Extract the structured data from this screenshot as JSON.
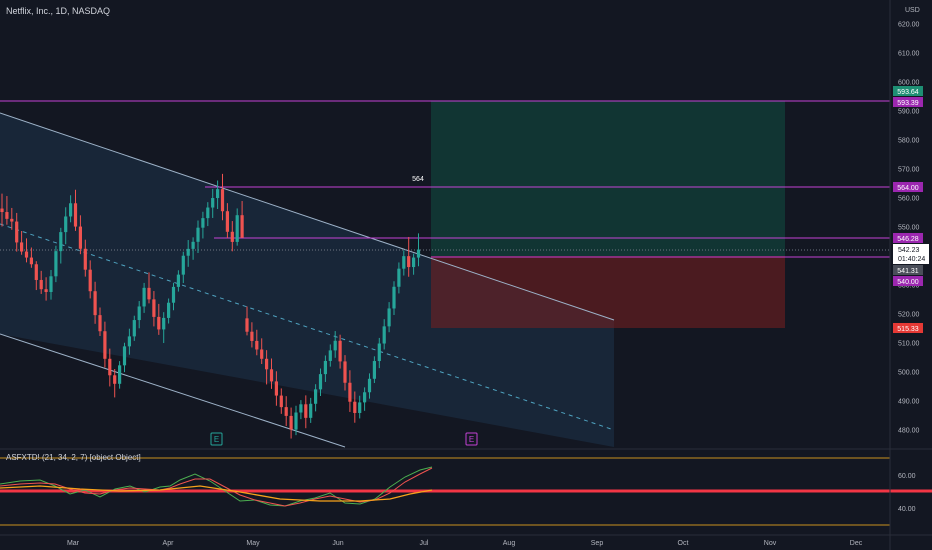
{
  "header": {
    "symbol_title": "Netflix, Inc., 1D, NASDAQ",
    "currency": "USD"
  },
  "indicator": {
    "title": "ASFXTD! (21, 34, 2, 7) [object Object]"
  },
  "colors": {
    "background": "#131722",
    "up": "#26a69a",
    "down": "#ef5350",
    "channel": "#9db2c8",
    "level_line": "#c342d4",
    "target_zone": "#0f5a4a",
    "stop_zone": "#7a1f1f",
    "indicator_red_line": "#f23645"
  },
  "price_axis": {
    "ticks": [
      "620.00",
      "610.00",
      "600.00",
      "590.00",
      "580.00",
      "570.00",
      "560.00",
      "550.00",
      "530.00",
      "520.00",
      "510.00",
      "500.00",
      "490.00",
      "480.00"
    ]
  },
  "time_axis": {
    "labels": [
      "Mar",
      "Apr",
      "May",
      "Jun",
      "Jul",
      "Aug",
      "Sep",
      "Oct",
      "Nov",
      "Dec"
    ]
  },
  "indicator_axis": {
    "ticks": [
      "60.00",
      "40.00"
    ]
  },
  "level_labels": {
    "target": "593.64",
    "upper": "593.39",
    "l564": "564.00",
    "l546": "546.28",
    "last_price": "542.23",
    "countdown": "01:40:24",
    "l541": "541.31",
    "l540": "540.00",
    "stop": "515.33"
  },
  "annotations": {
    "level_564": "564",
    "earnings_1": "E",
    "earnings_2": "E"
  },
  "chart_data": {
    "type": "candlestick",
    "title": "Netflix, Inc., 1D, NASDAQ",
    "ylim": [
      475,
      626
    ],
    "levels": [
      593.39,
      564.0,
      546.28,
      540.0
    ],
    "position": {
      "entry": 542.23,
      "target": 593.64,
      "stop": 515.33
    },
    "channel": {
      "upper": [
        [
          0,
          589
        ],
        [
          88,
          518
        ]
      ],
      "lower": [
        [
          0,
          531
        ],
        [
          88,
          471
        ]
      ]
    },
    "series": [
      {
        "name": "NFLX",
        "x_start": 0,
        "values": [
          [
            556.36,
            561.5,
            550.16,
            555.16
          ],
          [
            555.16,
            560.68,
            550.79,
            552.81
          ],
          [
            552.81,
            556.57,
            549.04,
            551.88
          ],
          [
            551.88,
            554.85,
            541.52,
            544.68
          ],
          [
            544.68,
            548.62,
            540.43,
            541.55
          ],
          [
            541.55,
            546.08,
            537.81,
            539.46
          ],
          [
            539.46,
            542.93,
            535.94,
            537.15
          ],
          [
            537.15,
            538.21,
            528.26,
            531.73
          ],
          [
            531.73,
            534.88,
            526.92,
            528.55
          ],
          [
            528.55,
            532.67,
            524.62,
            527.59
          ],
          [
            527.59,
            535.16,
            524.96,
            533.0
          ],
          [
            533.0,
            543.53,
            530.99,
            541.68
          ],
          [
            541.68,
            549.72,
            537.4,
            548.24
          ],
          [
            548.24,
            556.8,
            544.06,
            553.63
          ],
          [
            553.63,
            560.94,
            551.62,
            558.18
          ],
          [
            558.18,
            562.85,
            548.66,
            550.15
          ],
          [
            550.15,
            554.03,
            540.63,
            542.49
          ],
          [
            542.49,
            545.63,
            532.89,
            535.28
          ],
          [
            535.28,
            538.5,
            525.37,
            527.86
          ],
          [
            527.86,
            531.12,
            516.62,
            519.61
          ],
          [
            519.61,
            522.24,
            512.4,
            514.06
          ],
          [
            514.06,
            517.36,
            501.58,
            504.55
          ],
          [
            504.55,
            508.07,
            495.02,
            498.87
          ],
          [
            498.87,
            501.04,
            491.24,
            495.93
          ],
          [
            495.93,
            503.76,
            494.26,
            502.3
          ],
          [
            502.3,
            510.09,
            499.96,
            508.84
          ],
          [
            508.84,
            514.93,
            505.97,
            512.28
          ],
          [
            512.28,
            519.41,
            510.74,
            517.91
          ],
          [
            517.91,
            524.47,
            515.07,
            522.6
          ],
          [
            522.6,
            530.72,
            520.38,
            529.02
          ],
          [
            529.02,
            534.36,
            523.66,
            525.05
          ],
          [
            525.05,
            527.92,
            515.73,
            519.0
          ],
          [
            519.0,
            523.48,
            512.8,
            514.68
          ],
          [
            514.68,
            520.63,
            509.99,
            518.65
          ],
          [
            518.65,
            525.34,
            516.72,
            523.89
          ],
          [
            523.89,
            530.76,
            521.29,
            529.35
          ],
          [
            529.35,
            535.08,
            527.73,
            533.57
          ],
          [
            533.57,
            541.48,
            530.67,
            540.09
          ],
          [
            540.09,
            545.51,
            536.27,
            542.46
          ],
          [
            542.46,
            546.44,
            538.7,
            544.89
          ],
          [
            544.89,
            552.23,
            541.05,
            549.76
          ],
          [
            549.76,
            555.25,
            546.05,
            553.06
          ],
          [
            553.06,
            558.57,
            550.32,
            556.71
          ],
          [
            556.71,
            563.13,
            553.12,
            559.99
          ],
          [
            559.99,
            566.03,
            556.21,
            563.05
          ],
          [
            563.05,
            568.3,
            552.32,
            555.44
          ],
          [
            555.44,
            558.23,
            546.18,
            548.35
          ],
          [
            548.35,
            552.05,
            541.62,
            544.86
          ],
          [
            544.86,
            556.41,
            543.56,
            554.07
          ],
          [
            554.07,
            558.96,
            546.78,
            546.28
          ],
          [
            518.5,
            522.6,
            512.62,
            513.89
          ],
          [
            513.89,
            517.15,
            508.46,
            510.71
          ],
          [
            510.71,
            514.56,
            505.77,
            507.77
          ],
          [
            507.77,
            511.61,
            502.76,
            504.55
          ],
          [
            504.55,
            507.53,
            495.71,
            500.93
          ],
          [
            500.93,
            504.66,
            494.16,
            496.76
          ],
          [
            496.76,
            500.25,
            488.37,
            491.87
          ],
          [
            491.87,
            494.34,
            485.57,
            487.89
          ],
          [
            487.89,
            491.67,
            481.37,
            484.86
          ],
          [
            484.86,
            487.73,
            477.06,
            480.14
          ],
          [
            480.14,
            488.35,
            478.25,
            486.03
          ],
          [
            486.03,
            490.31,
            483.74,
            488.86
          ],
          [
            488.86,
            491.94,
            480.62,
            484.19
          ],
          [
            484.19,
            491.08,
            482.44,
            489.04
          ],
          [
            489.04,
            495.79,
            486.42,
            494.02
          ],
          [
            494.02,
            501.19,
            491.71,
            499.27
          ],
          [
            499.27,
            505.7,
            496.57,
            503.81
          ],
          [
            503.81,
            509.5,
            501.85,
            507.45
          ],
          [
            507.45,
            514.12,
            504.9,
            510.76
          ],
          [
            510.76,
            512.86,
            501.18,
            503.65
          ],
          [
            503.65,
            505.8,
            493.62,
            496.29
          ],
          [
            496.29,
            500.6,
            486.22,
            489.75
          ],
          [
            489.75,
            493.28,
            482.51,
            485.87
          ],
          [
            485.87,
            491.81,
            483.99,
            489.52
          ],
          [
            489.52,
            494.69,
            486.61,
            493.01
          ],
          [
            493.01,
            499.53,
            490.83,
            497.66
          ],
          [
            497.66,
            505.41,
            496.2,
            503.78
          ],
          [
            503.78,
            511.75,
            501.34,
            509.82
          ],
          [
            509.82,
            518.22,
            507.77,
            515.74
          ],
          [
            515.74,
            524.1,
            513.72,
            521.91
          ],
          [
            521.91,
            531.3,
            519.65,
            529.39
          ],
          [
            529.39,
            537.78,
            527.1,
            535.63
          ],
          [
            535.63,
            541.98,
            533.26,
            539.95
          ],
          [
            539.95,
            546.56,
            532.84,
            536.19
          ],
          [
            536.19,
            540.82,
            533.54,
            539.46
          ],
          [
            539.46,
            547.8,
            536.47,
            542.23
          ]
        ]
      }
    ]
  }
}
